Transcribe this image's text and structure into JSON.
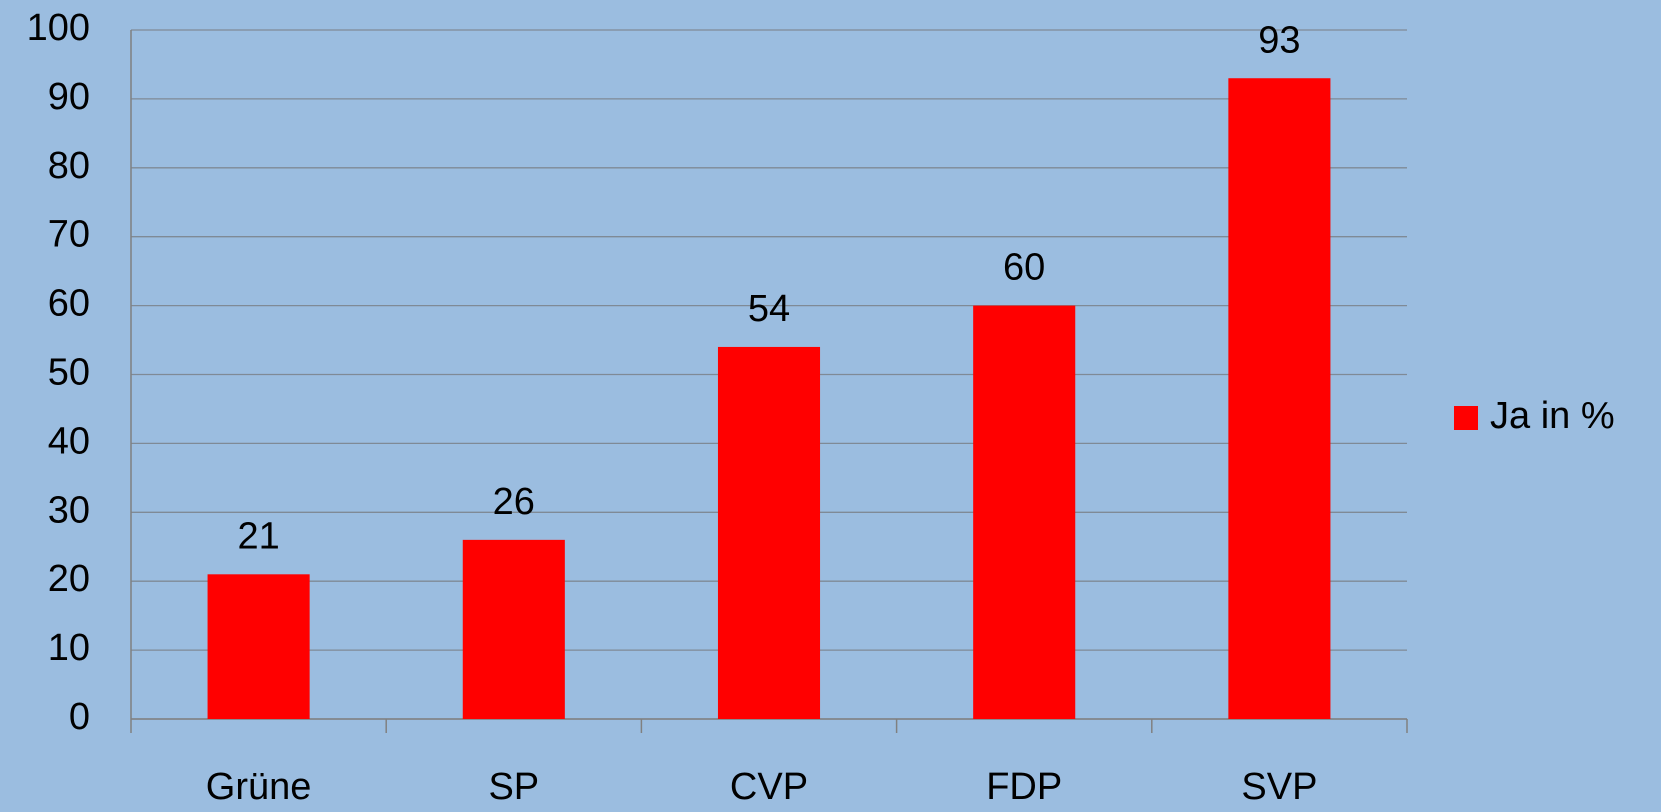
{
  "chart_data": {
    "type": "bar",
    "categories": [
      "Grüne",
      "SP",
      "CVP",
      "FDP",
      "SVP"
    ],
    "series": [
      {
        "name": "Ja in %",
        "color": "#ff0000",
        "values": [
          21,
          26,
          54,
          60,
          93
        ]
      }
    ],
    "ylim": [
      0,
      100
    ],
    "yticks": [
      0,
      10,
      20,
      30,
      40,
      50,
      60,
      70,
      80,
      90,
      100
    ],
    "grid": true,
    "legend": "right",
    "data_labels": true
  }
}
